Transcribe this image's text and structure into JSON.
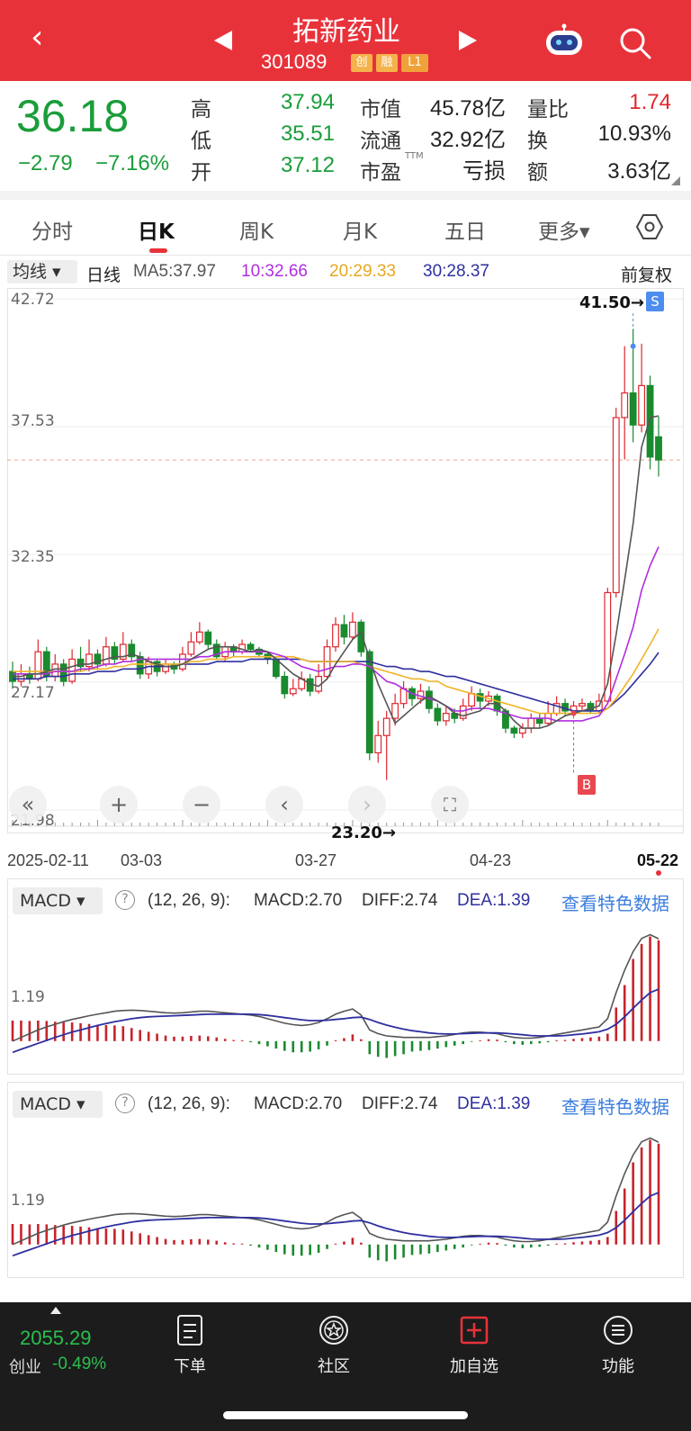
{
  "header": {
    "back_icon": "chevron-left-icon",
    "stock_name": "拓新药业",
    "stock_code": "301089",
    "tags": [
      "创",
      "融",
      "L1"
    ],
    "prev_icon": "triangle-left-icon",
    "next_icon": "triangle-right-icon",
    "robot_icon": "robot-icon",
    "search_icon": "search-icon",
    "bg_color": "#e8323a"
  },
  "quote": {
    "price": "36.18",
    "change": "−2.79",
    "change_pct": "−7.16%",
    "rows": [
      {
        "l1": "高",
        "v1": "37.94",
        "l2": "市值",
        "v2": "45.78亿",
        "l3": "量比",
        "v3": "1.74"
      },
      {
        "l1": "低",
        "v1": "35.51",
        "l2": "流通",
        "v2": "32.92亿",
        "l3": "换",
        "v3": "10.93%"
      },
      {
        "l1": "开",
        "v1": "37.12",
        "l2": "市盈",
        "l2sup": "TTM",
        "v2": "亏损",
        "l3": "额",
        "v3": "3.63亿"
      }
    ]
  },
  "tabs": [
    {
      "label": "分时",
      "active": false
    },
    {
      "label": "日K",
      "active": true
    },
    {
      "label": "周K",
      "active": false
    },
    {
      "label": "月K",
      "active": false
    },
    {
      "label": "五日",
      "active": false
    },
    {
      "label": "更多▾",
      "active": false
    }
  ],
  "settings_icon": "hexagon-settings-icon",
  "ma_legend": {
    "dropdown": "均线 ▾",
    "period": "日线",
    "ma5": "MA5:37.97",
    "ma10": "10:32.66",
    "ma20": "20:29.33",
    "ma30": "30:28.37",
    "adjust": "前复权",
    "colors": {
      "ma5": "#555555",
      "ma10": "#b02ee0",
      "ma20": "#f0b429",
      "ma30": "#2f2fa0"
    }
  },
  "chart_data": {
    "type": "candlestick",
    "y_ticks": [
      "42.72",
      "37.53",
      "32.35",
      "27.17",
      "21.98"
    ],
    "ylim": [
      21.98,
      42.72
    ],
    "x_labels": [
      "2025-02-11",
      "03-03",
      "03-27",
      "04-23",
      "05-22"
    ],
    "annotations": {
      "high": "41.50→",
      "low": "23.20→",
      "sell_marker": "S",
      "buy_marker": "B"
    },
    "last_close": 36.18,
    "candles": [
      [
        27.6,
        27.2,
        28.0,
        26.9
      ],
      [
        27.2,
        27.5,
        27.9,
        27.0
      ],
      [
        27.5,
        27.3,
        27.8,
        27.1
      ],
      [
        27.3,
        28.4,
        28.9,
        27.2
      ],
      [
        28.4,
        27.4,
        28.6,
        27.2
      ],
      [
        27.4,
        27.9,
        28.3,
        27.2
      ],
      [
        27.9,
        27.2,
        28.1,
        27.0
      ],
      [
        27.2,
        28.1,
        28.5,
        27.1
      ],
      [
        28.1,
        27.8,
        28.6,
        27.6
      ],
      [
        27.8,
        28.3,
        28.9,
        27.6
      ],
      [
        28.3,
        27.9,
        28.5,
        27.7
      ],
      [
        27.9,
        28.6,
        29.0,
        27.8
      ],
      [
        28.6,
        28.1,
        28.8,
        27.9
      ],
      [
        28.1,
        28.7,
        29.2,
        28.0
      ],
      [
        28.7,
        28.2,
        28.9,
        28.0
      ],
      [
        28.2,
        27.5,
        28.4,
        27.3
      ],
      [
        27.5,
        28.0,
        28.2,
        27.3
      ],
      [
        28.0,
        27.6,
        28.1,
        27.4
      ],
      [
        27.6,
        27.9,
        28.1,
        27.5
      ],
      [
        27.9,
        27.7,
        28.0,
        27.5
      ],
      [
        27.7,
        28.3,
        28.6,
        27.6
      ],
      [
        28.3,
        28.8,
        29.2,
        28.2
      ],
      [
        28.8,
        29.2,
        29.6,
        28.7
      ],
      [
        29.2,
        28.7,
        29.3,
        28.5
      ],
      [
        28.7,
        28.2,
        28.9,
        28.1
      ],
      [
        28.2,
        28.6,
        28.8,
        28.0
      ],
      [
        28.6,
        28.4,
        28.7,
        28.2
      ],
      [
        28.4,
        28.7,
        28.9,
        28.3
      ],
      [
        28.7,
        28.5,
        28.8,
        28.4
      ],
      [
        28.5,
        28.3,
        28.6,
        28.2
      ],
      [
        28.3,
        28.1,
        28.4,
        27.9
      ],
      [
        28.1,
        27.4,
        28.2,
        27.3
      ],
      [
        27.4,
        26.7,
        27.6,
        26.5
      ],
      [
        26.7,
        26.9,
        27.3,
        26.6
      ],
      [
        26.9,
        27.3,
        27.6,
        26.8
      ],
      [
        27.3,
        26.8,
        27.5,
        26.6
      ],
      [
        26.8,
        27.4,
        27.9,
        26.7
      ],
      [
        27.4,
        28.6,
        28.9,
        27.3
      ],
      [
        28.6,
        29.5,
        29.8,
        28.4
      ],
      [
        29.5,
        29.0,
        29.9,
        28.7
      ],
      [
        29.0,
        29.6,
        30.0,
        28.9
      ],
      [
        29.6,
        28.4,
        29.7,
        28.2
      ],
      [
        28.4,
        24.3,
        28.5,
        24.0
      ],
      [
        24.3,
        25.0,
        25.6,
        23.9
      ],
      [
        25.0,
        25.7,
        26.0,
        23.2
      ],
      [
        25.7,
        26.3,
        26.7,
        25.4
      ],
      [
        26.3,
        26.9,
        27.2,
        26.1
      ],
      [
        26.9,
        26.5,
        27.0,
        26.2
      ],
      [
        26.5,
        26.8,
        27.1,
        26.3
      ],
      [
        26.8,
        26.1,
        27.0,
        25.9
      ],
      [
        26.1,
        25.6,
        26.3,
        25.4
      ],
      [
        25.6,
        25.9,
        26.2,
        25.4
      ],
      [
        25.9,
        25.7,
        26.1,
        25.5
      ],
      [
        25.7,
        26.2,
        26.5,
        25.6
      ],
      [
        26.2,
        26.7,
        27.0,
        26.0
      ],
      [
        26.7,
        26.4,
        26.9,
        26.1
      ],
      [
        26.4,
        26.6,
        26.8,
        26.2
      ],
      [
        26.6,
        26.0,
        26.7,
        25.8
      ],
      [
        26.0,
        25.3,
        26.1,
        25.1
      ],
      [
        25.3,
        25.1,
        25.4,
        24.9
      ],
      [
        25.1,
        25.3,
        25.5,
        24.9
      ],
      [
        25.3,
        25.7,
        25.9,
        25.1
      ],
      [
        25.7,
        25.5,
        25.9,
        25.3
      ],
      [
        25.5,
        25.9,
        26.4,
        25.4
      ],
      [
        25.9,
        26.3,
        26.6,
        25.8
      ],
      [
        26.3,
        26.0,
        26.5,
        25.8
      ],
      [
        26.0,
        26.2,
        26.4,
        25.9
      ],
      [
        26.2,
        26.3,
        26.5,
        26.0
      ],
      [
        26.3,
        26.0,
        26.4,
        25.9
      ],
      [
        26.0,
        26.4,
        26.7,
        25.9
      ],
      [
        26.4,
        30.8,
        31.0,
        26.3
      ],
      [
        30.8,
        37.9,
        38.3,
        30.6
      ],
      [
        37.9,
        38.9,
        40.8,
        36.2
      ],
      [
        38.9,
        37.6,
        41.5,
        36.9
      ],
      [
        37.6,
        39.2,
        40.9,
        37.3
      ],
      [
        39.2,
        36.3,
        39.6,
        35.8
      ],
      [
        37.12,
        36.18,
        37.94,
        35.51
      ]
    ],
    "ma5": [
      27.4,
      27.4,
      27.5,
      27.5,
      27.6,
      27.7,
      27.7,
      27.8,
      27.9,
      27.9,
      28.0,
      28.1,
      28.2,
      28.2,
      28.3,
      28.2,
      28.0,
      27.9,
      27.8,
      27.8,
      27.9,
      28.1,
      28.3,
      28.5,
      28.6,
      28.6,
      28.6,
      28.5,
      28.4,
      28.5,
      28.4,
      28.1,
      27.8,
      27.5,
      27.3,
      27.1,
      27.0,
      27.3,
      27.9,
      28.4,
      28.9,
      29.2,
      28.1,
      27.1,
      26.3,
      25.5,
      25.8,
      26.1,
      26.4,
      26.6,
      26.4,
      26.2,
      25.9,
      25.8,
      25.9,
      26.0,
      26.3,
      26.3,
      26.0,
      25.6,
      25.3,
      25.3,
      25.3,
      25.4,
      25.6,
      25.8,
      25.9,
      26.0,
      26.1,
      26.2,
      27.1,
      29.1,
      31.3,
      33.6,
      36.7,
      37.9,
      37.97
    ],
    "ma10": [
      27.5,
      27.5,
      27.5,
      27.5,
      27.5,
      27.6,
      27.6,
      27.6,
      27.7,
      27.7,
      27.8,
      27.9,
      27.9,
      28.0,
      28.0,
      28.1,
      28.1,
      28.1,
      28.1,
      28.1,
      28.1,
      28.1,
      28.2,
      28.2,
      28.3,
      28.4,
      28.4,
      28.4,
      28.4,
      28.4,
      28.4,
      28.3,
      28.2,
      28.0,
      27.8,
      27.7,
      27.6,
      27.7,
      27.8,
      27.8,
      27.9,
      27.9,
      27.8,
      27.5,
      27.2,
      27.1,
      26.9,
      26.7,
      26.6,
      26.5,
      26.4,
      26.2,
      26.0,
      26.0,
      26.1,
      26.1,
      26.1,
      26.0,
      25.9,
      25.8,
      25.7,
      25.7,
      25.7,
      25.7,
      25.6,
      25.6,
      25.6,
      25.6,
      25.7,
      25.8,
      26.3,
      27.3,
      28.3,
      29.4,
      30.9,
      31.9,
      32.66
    ],
    "ma20": [
      27.6,
      27.6,
      27.6,
      27.6,
      27.6,
      27.6,
      27.6,
      27.6,
      27.6,
      27.7,
      27.7,
      27.7,
      27.8,
      27.8,
      27.9,
      27.9,
      27.9,
      27.9,
      27.9,
      27.9,
      27.9,
      28.0,
      28.0,
      28.1,
      28.1,
      28.1,
      28.2,
      28.2,
      28.2,
      28.2,
      28.2,
      28.2,
      28.2,
      28.2,
      28.1,
      28.0,
      28.0,
      28.0,
      28.0,
      28.0,
      28.0,
      27.9,
      27.8,
      27.7,
      27.6,
      27.5,
      27.4,
      27.3,
      27.3,
      27.2,
      27.2,
      27.0,
      26.9,
      26.8,
      26.7,
      26.6,
      26.5,
      26.4,
      26.3,
      26.2,
      26.1,
      26.0,
      25.9,
      25.9,
      25.9,
      25.9,
      25.9,
      25.9,
      25.9,
      25.9,
      26.1,
      26.5,
      27.0,
      27.5,
      28.1,
      28.7,
      29.33
    ],
    "ma30": [
      27.3,
      27.3,
      27.3,
      27.3,
      27.4,
      27.4,
      27.4,
      27.5,
      27.5,
      27.5,
      27.6,
      27.6,
      27.6,
      27.7,
      27.7,
      27.7,
      27.8,
      27.8,
      27.8,
      27.8,
      27.9,
      27.9,
      27.9,
      27.9,
      28.0,
      28.0,
      28.0,
      28.0,
      28.1,
      28.1,
      28.1,
      28.1,
      28.1,
      28.1,
      28.1,
      28.0,
      28.0,
      28.0,
      28.0,
      28.0,
      28.0,
      28.0,
      28.0,
      27.9,
      27.8,
      27.8,
      27.7,
      27.7,
      27.6,
      27.6,
      27.5,
      27.4,
      27.4,
      27.3,
      27.2,
      27.1,
      27.0,
      26.9,
      26.8,
      26.7,
      26.6,
      26.5,
      26.4,
      26.3,
      26.2,
      26.1,
      26.0,
      26.0,
      26.0,
      26.0,
      26.1,
      26.4,
      26.7,
      27.1,
      27.5,
      27.9,
      28.37
    ]
  },
  "controls": {
    "first": "«",
    "zoom_in": "+",
    "zoom_out": "−",
    "prev": "‹",
    "next": "›",
    "fullscreen": "⛶"
  },
  "macd": [
    {
      "dropdown": "MACD ▾",
      "help": "?",
      "params": "(12, 26, 9):",
      "macd": "MACD:2.70",
      "diff": "DIFF:2.74",
      "dea": "DEA:1.39",
      "link": "查看特色数据",
      "tick": "1.19"
    },
    {
      "dropdown": "MACD ▾",
      "help": "?",
      "params": "(12, 26, 9):",
      "macd": "MACD:2.70",
      "diff": "DIFF:2.74",
      "dea": "DEA:1.39",
      "link": "查看特色数据",
      "tick": "1.19"
    }
  ],
  "macd_series": {
    "hist": [
      0.55,
      0.55,
      0.54,
      0.55,
      0.54,
      0.52,
      0.5,
      0.5,
      0.48,
      0.46,
      0.44,
      0.43,
      0.42,
      0.4,
      0.35,
      0.3,
      0.25,
      0.2,
      0.15,
      0.12,
      0.12,
      0.14,
      0.15,
      0.13,
      0.1,
      0.06,
      0.03,
      0.0,
      -0.03,
      -0.08,
      -0.14,
      -0.2,
      -0.26,
      -0.3,
      -0.3,
      -0.28,
      -0.22,
      -0.12,
      0.0,
      0.08,
      0.18,
      0.05,
      -0.35,
      -0.42,
      -0.45,
      -0.4,
      -0.35,
      -0.28,
      -0.26,
      -0.24,
      -0.2,
      -0.16,
      -0.12,
      -0.08,
      -0.02,
      0.02,
      0.05,
      0.04,
      -0.03,
      -0.08,
      -0.1,
      -0.08,
      -0.06,
      -0.03,
      0.0,
      0.03,
      0.06,
      0.08,
      0.1,
      0.12,
      0.2,
      0.9,
      1.5,
      2.2,
      2.6,
      2.8,
      2.7
    ],
    "diff": [
      0.0,
      0.1,
      0.2,
      0.3,
      0.38,
      0.45,
      0.52,
      0.58,
      0.63,
      0.68,
      0.72,
      0.76,
      0.8,
      0.82,
      0.83,
      0.82,
      0.8,
      0.78,
      0.76,
      0.75,
      0.76,
      0.78,
      0.8,
      0.8,
      0.78,
      0.76,
      0.74,
      0.72,
      0.7,
      0.66,
      0.6,
      0.54,
      0.48,
      0.44,
      0.42,
      0.44,
      0.5,
      0.6,
      0.72,
      0.8,
      0.86,
      0.7,
      0.3,
      0.2,
      0.14,
      0.12,
      0.1,
      0.1,
      0.1,
      0.1,
      0.12,
      0.14,
      0.18,
      0.22,
      0.24,
      0.24,
      0.22,
      0.2,
      0.14,
      0.1,
      0.08,
      0.08,
      0.1,
      0.14,
      0.18,
      0.22,
      0.26,
      0.3,
      0.34,
      0.38,
      0.6,
      1.3,
      1.9,
      2.4,
      2.75,
      2.85,
      2.74
    ],
    "dea": [
      -0.3,
      -0.22,
      -0.14,
      -0.06,
      0.02,
      0.1,
      0.17,
      0.24,
      0.3,
      0.36,
      0.42,
      0.47,
      0.52,
      0.56,
      0.6,
      0.63,
      0.65,
      0.66,
      0.67,
      0.68,
      0.69,
      0.7,
      0.71,
      0.72,
      0.72,
      0.72,
      0.72,
      0.72,
      0.72,
      0.71,
      0.69,
      0.66,
      0.63,
      0.6,
      0.57,
      0.55,
      0.55,
      0.56,
      0.58,
      0.6,
      0.63,
      0.64,
      0.58,
      0.5,
      0.43,
      0.37,
      0.32,
      0.28,
      0.25,
      0.22,
      0.2,
      0.19,
      0.19,
      0.2,
      0.21,
      0.22,
      0.22,
      0.22,
      0.21,
      0.19,
      0.17,
      0.15,
      0.14,
      0.14,
      0.14,
      0.15,
      0.17,
      0.19,
      0.22,
      0.25,
      0.32,
      0.45,
      0.65,
      0.88,
      1.1,
      1.3,
      1.39
    ],
    "ylim": [
      -0.8,
      3.2
    ]
  },
  "bottom": {
    "index_value": "2055.29",
    "index_name": "创业",
    "index_change": "-0.49%",
    "items": [
      {
        "label": "下单",
        "icon": "order-document-icon"
      },
      {
        "label": "社区",
        "icon": "community-star-icon"
      },
      {
        "label": "加自选",
        "icon": "add-watchlist-icon"
      },
      {
        "label": "功能",
        "icon": "menu-function-icon"
      }
    ]
  }
}
